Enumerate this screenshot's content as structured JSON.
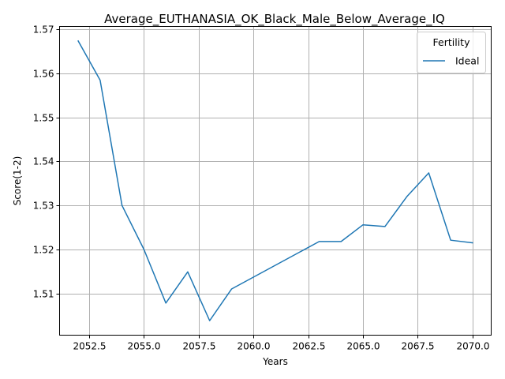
{
  "chart_data": {
    "type": "line",
    "title": "Average_EUTHANASIA_OK_Black_Male_Below_Average_IQ",
    "xlabel": "Years",
    "ylabel": "Score(1-2)",
    "xlim": [
      2051.15,
      2070.85
    ],
    "ylim": [
      1.5005,
      1.5707
    ],
    "x_ticks": [
      2052.5,
      2055.0,
      2057.5,
      2060.0,
      2062.5,
      2065.0,
      2067.5,
      2070.0
    ],
    "x_tick_labels": [
      "2052.5",
      "2055.0",
      "2057.5",
      "2060.0",
      "2062.5",
      "2065.0",
      "2067.5",
      "2070.0"
    ],
    "y_ticks": [
      1.51,
      1.52,
      1.53,
      1.54,
      1.55,
      1.56,
      1.57
    ],
    "y_tick_labels": [
      "1.51",
      "1.52",
      "1.53",
      "1.54",
      "1.55",
      "1.56",
      "1.57"
    ],
    "grid": true,
    "legend": {
      "title": "Fertility",
      "placement": "top-right"
    },
    "series": [
      {
        "name": "Ideal",
        "color": "#1f77b4",
        "x": [
          2052,
          2053,
          2054,
          2055,
          2056,
          2057,
          2058,
          2059,
          2063,
          2064,
          2065,
          2066,
          2067,
          2068,
          2069,
          2070
        ],
        "values": [
          1.5674,
          1.5585,
          1.53,
          1.52,
          1.5078,
          1.5149,
          1.5038,
          1.511,
          1.5218,
          1.5218,
          1.5256,
          1.5252,
          1.532,
          1.5374,
          1.5221,
          1.5215
        ]
      }
    ]
  }
}
